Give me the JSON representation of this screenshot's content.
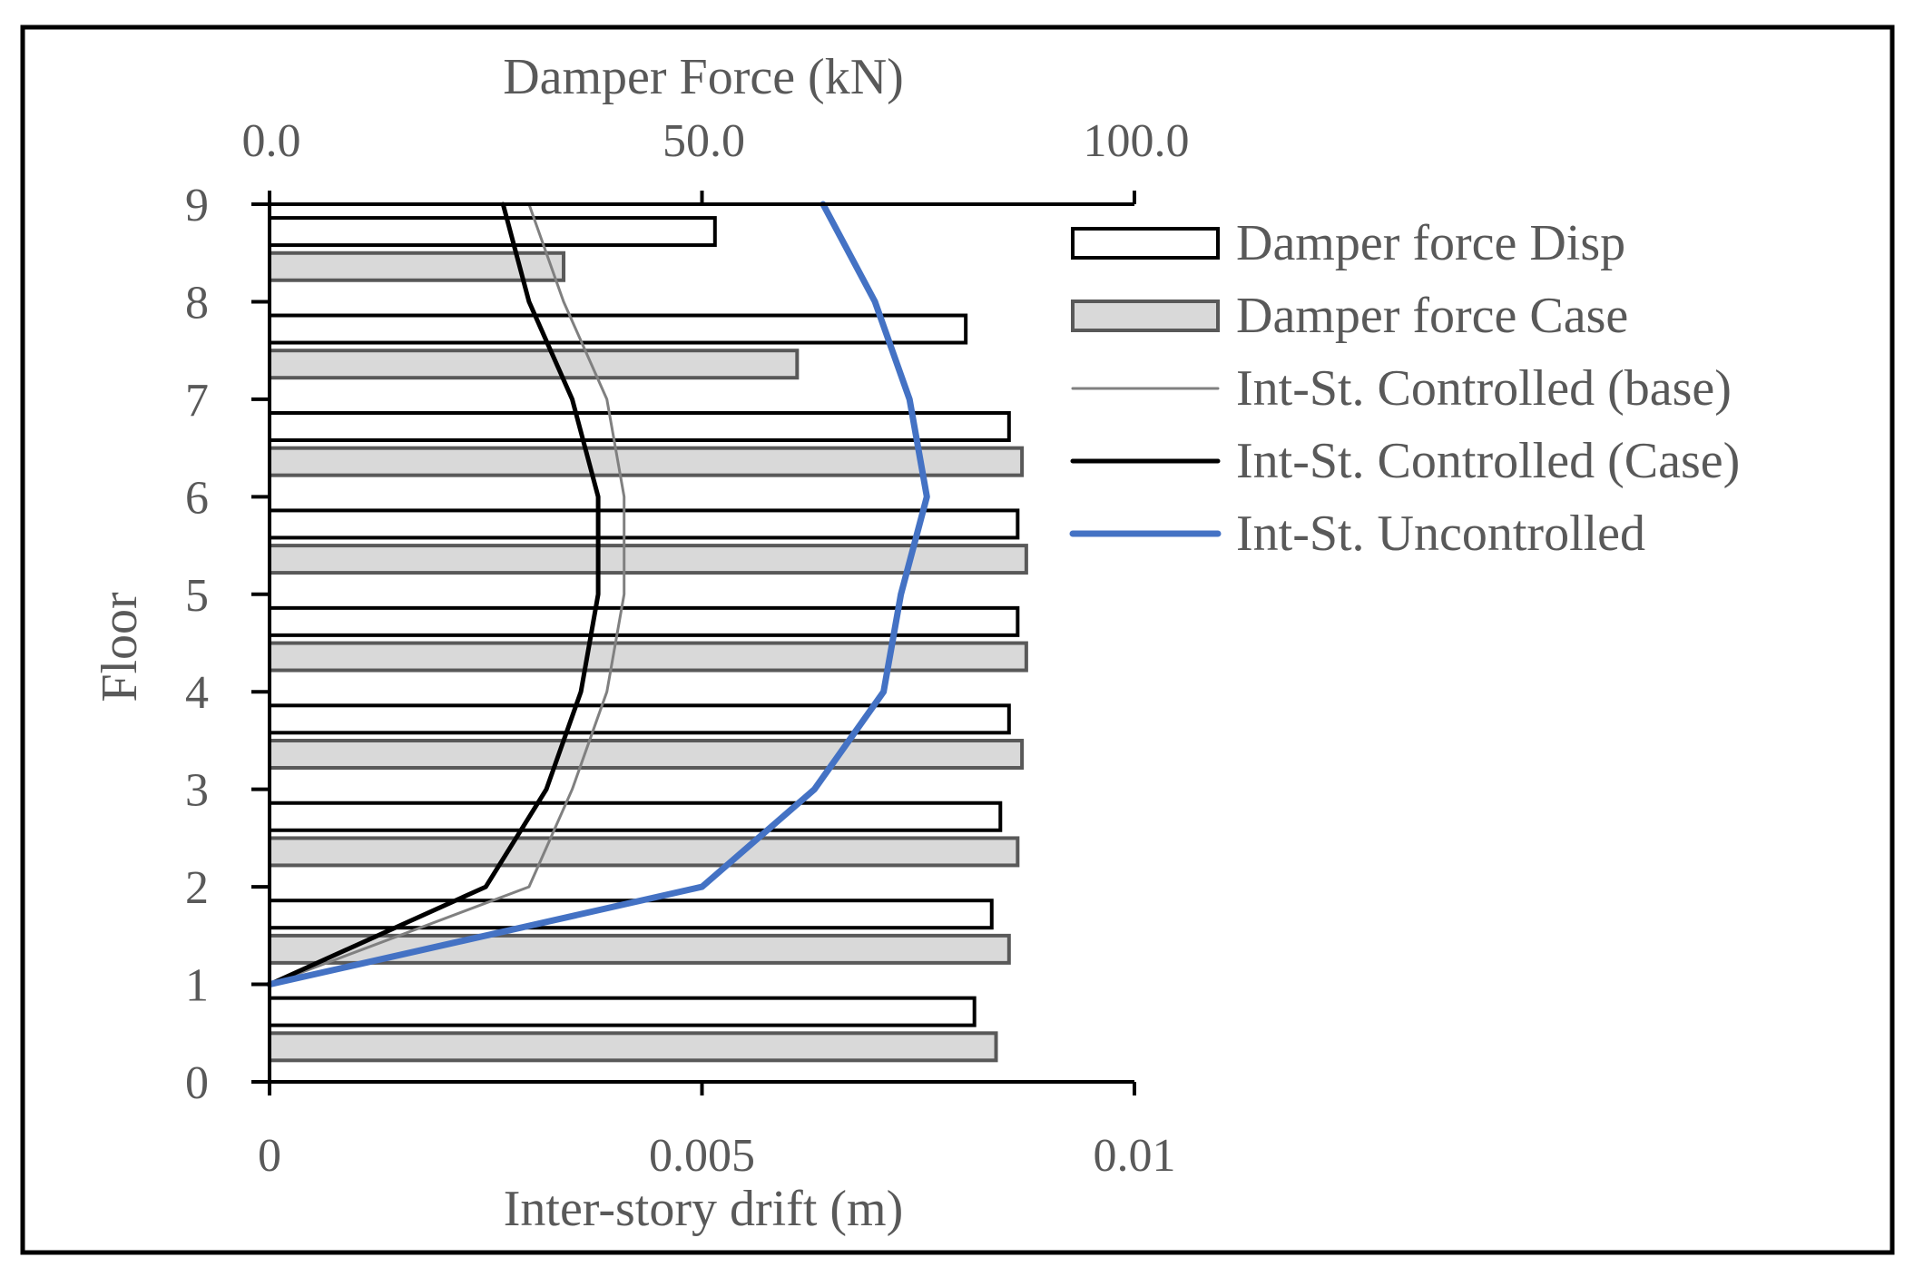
{
  "chart_data": {
    "type": "bar",
    "orientation": "horizontal",
    "top_axis": {
      "title": "Damper Force (kN)",
      "range": [
        0,
        100
      ],
      "ticks": [
        0,
        50,
        100
      ],
      "tick_labels": [
        "0.0",
        "50.0",
        "100.0"
      ]
    },
    "bottom_axis": {
      "title": "Inter-story drift (m)",
      "range": [
        0,
        0.01
      ],
      "ticks": [
        0,
        0.005,
        0.01
      ],
      "tick_labels": [
        "0",
        "0.005",
        "0.01"
      ]
    },
    "y_axis": {
      "title": "Floor",
      "range": [
        0,
        9
      ],
      "ticks": [
        0,
        1,
        2,
        3,
        4,
        5,
        6,
        7,
        8,
        9
      ],
      "tick_labels": [
        "0",
        "1",
        "2",
        "3",
        "4",
        "5",
        "6",
        "7",
        "8",
        "9"
      ]
    },
    "bar_series": [
      {
        "name": "Damper force Disp",
        "color": "#ffffff",
        "stroke": "#000000",
        "floor_offset": 0.72,
        "values": [
          81.5,
          83.5,
          84.5,
          85.5,
          86.5,
          86.5,
          85.5,
          80.5,
          51.5
        ]
      },
      {
        "name": "Damper force Case",
        "color": "#d9d9d9",
        "stroke": "#595959",
        "floor_offset": 0.36,
        "values": [
          84,
          85.5,
          86.5,
          87,
          87.5,
          87.5,
          87,
          61,
          34
        ]
      }
    ],
    "line_series": [
      {
        "name": "Int-St. Controlled (base)",
        "color": "#808080",
        "width": 3,
        "points": [
          [
            0,
            1
          ],
          [
            0.003,
            2
          ],
          [
            0.0035,
            3
          ],
          [
            0.0039,
            4
          ],
          [
            0.0041,
            5
          ],
          [
            0.0041,
            6
          ],
          [
            0.0039,
            7
          ],
          [
            0.0034,
            8
          ],
          [
            0.003,
            9
          ]
        ]
      },
      {
        "name": "Int-St. Controlled (Case)",
        "color": "#000000",
        "width": 5,
        "points": [
          [
            0,
            1
          ],
          [
            0.0025,
            2
          ],
          [
            0.0032,
            3
          ],
          [
            0.0036,
            4
          ],
          [
            0.0038,
            5
          ],
          [
            0.0038,
            6
          ],
          [
            0.0035,
            7
          ],
          [
            0.003,
            8
          ],
          [
            0.0027,
            9
          ]
        ]
      },
      {
        "name": "Int-St. Uncontrolled",
        "color": "#4472c4",
        "width": 7,
        "points": [
          [
            0,
            1
          ],
          [
            0.005,
            2
          ],
          [
            0.0063,
            3
          ],
          [
            0.0071,
            4
          ],
          [
            0.0073,
            5
          ],
          [
            0.0076,
            6
          ],
          [
            0.0074,
            7
          ],
          [
            0.007,
            8
          ],
          [
            0.0064,
            9
          ]
        ]
      }
    ],
    "legend": {
      "placement": "right",
      "entries": [
        "Damper force Disp",
        "Damper force Case",
        "Int-St. Controlled (base)",
        "Int-St. Controlled (Case)",
        "Int-St. Uncontrolled"
      ]
    },
    "grid": false
  }
}
